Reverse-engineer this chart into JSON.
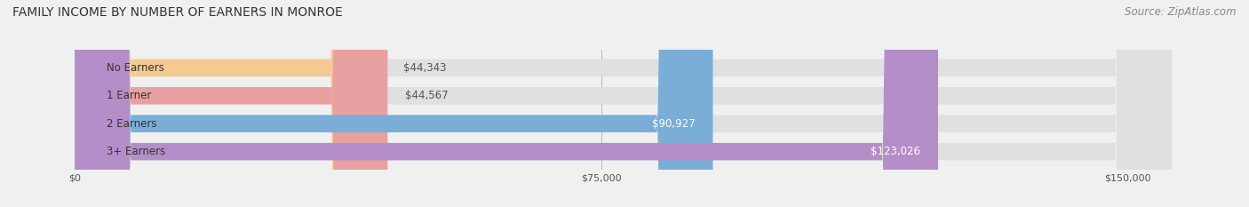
{
  "title": "FAMILY INCOME BY NUMBER OF EARNERS IN MONROE",
  "source": "Source: ZipAtlas.com",
  "categories": [
    "No Earners",
    "1 Earner",
    "2 Earners",
    "3+ Earners"
  ],
  "values": [
    44343,
    44567,
    90927,
    123026
  ],
  "bar_colors": [
    "#f5c992",
    "#e8a0a0",
    "#7aaed6",
    "#b48ec8"
  ],
  "label_colors": [
    "#555555",
    "#555555",
    "#ffffff",
    "#ffffff"
  ],
  "x_ticks": [
    0,
    75000,
    150000
  ],
  "x_tick_labels": [
    "$0",
    "$75,000",
    "$150,000"
  ],
  "xlim": [
    0,
    162000
  ],
  "background_color": "#f0f0f0",
  "title_fontsize": 10,
  "source_fontsize": 8.5,
  "bar_label_fontsize": 8.5,
  "category_fontsize": 8.5
}
